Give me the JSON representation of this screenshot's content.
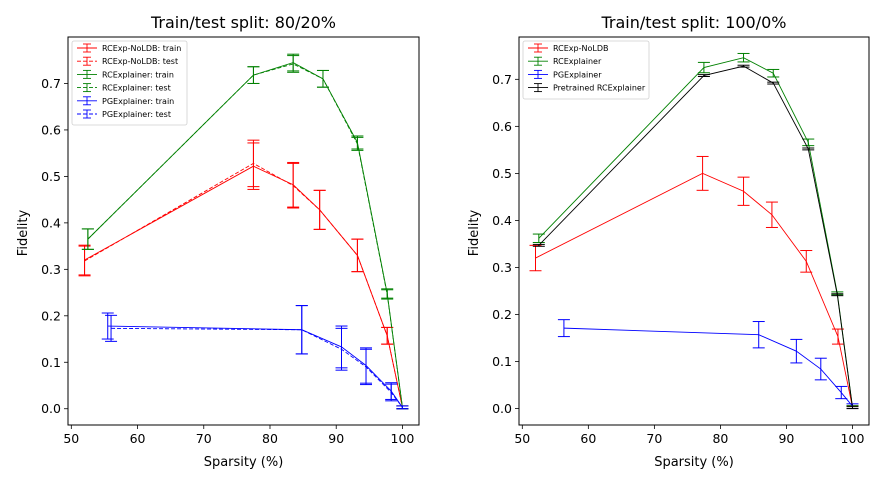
{
  "chart_data": [
    {
      "type": "line",
      "title": "Train/test split: 80/20%",
      "xlabel": "Sparsity (%)",
      "ylabel": "Fidelity",
      "xlim": [
        49.5,
        102.5
      ],
      "ylim": [
        -0.035,
        0.8
      ],
      "xticks": [
        50,
        60,
        70,
        80,
        90,
        100
      ],
      "yticks": [
        0.0,
        0.1,
        0.2,
        0.3,
        0.4,
        0.5,
        0.6,
        0.7
      ],
      "legend_position": "top-left",
      "series": [
        {
          "name": "RCExp-NoLDB: train",
          "color": "#ff0000",
          "dash": "solid",
          "x": [
            52,
            77.5,
            83.5,
            87.5,
            93.2,
            97.7,
            100
          ],
          "y": [
            0.32,
            0.522,
            0.482,
            0.428,
            0.33,
            0.157,
            0.003
          ],
          "err": [
            0.032,
            0.05,
            0.048,
            0.042,
            0.035,
            0.018,
            0.003
          ]
        },
        {
          "name": "RCExp-NoLDB: test",
          "color": "#ff0000",
          "dash": "dashed",
          "x": [
            52,
            77.5,
            83.5,
            87.5,
            93.2,
            97.7,
            100
          ],
          "y": [
            0.318,
            0.528,
            0.48,
            0.428,
            0.33,
            0.157,
            0.003
          ],
          "err": [
            0.032,
            0.05,
            0.048,
            0.042,
            0.035,
            0.018,
            0.003
          ]
        },
        {
          "name": "RCExplainer: train",
          "color": "#008000",
          "dash": "solid",
          "x": [
            52.5,
            77.5,
            83.5,
            88,
            93.2,
            97.7,
            100
          ],
          "y": [
            0.365,
            0.718,
            0.745,
            0.71,
            0.573,
            0.248,
            0.003
          ],
          "err": [
            0.022,
            0.018,
            0.018,
            0.018,
            0.014,
            0.01,
            0.003
          ]
        },
        {
          "name": "RCExplainer: test",
          "color": "#008000",
          "dash": "dashed",
          "x": [
            52.5,
            77.5,
            83.5,
            88,
            93.2,
            97.7,
            100
          ],
          "y": [
            0.365,
            0.718,
            0.742,
            0.71,
            0.57,
            0.246,
            0.003
          ],
          "err": [
            0.022,
            0.018,
            0.018,
            0.018,
            0.014,
            0.01,
            0.003
          ]
        },
        {
          "name": "PGExplainer: train",
          "color": "#0000ff",
          "dash": "solid",
          "x": [
            55.5,
            84.8,
            90.8,
            94.5,
            98.3,
            100
          ],
          "y": [
            0.178,
            0.17,
            0.133,
            0.093,
            0.038,
            0.003
          ],
          "err": [
            0.028,
            0.052,
            0.045,
            0.038,
            0.018,
            0.003
          ]
        },
        {
          "name": "PGExplainer: test",
          "color": "#0000ff",
          "dash": "dashed",
          "x": [
            56,
            84.8,
            90.8,
            94.5,
            98.3,
            100
          ],
          "y": [
            0.173,
            0.17,
            0.128,
            0.09,
            0.035,
            0.003
          ],
          "err": [
            0.028,
            0.052,
            0.045,
            0.038,
            0.018,
            0.003
          ]
        }
      ]
    },
    {
      "type": "line",
      "title": "Train/test split: 100/0%",
      "xlabel": "Sparsity (%)",
      "ylabel": "Fidelity",
      "xlim": [
        49.5,
        102.5
      ],
      "ylim": [
        -0.035,
        0.79
      ],
      "xticks": [
        50,
        60,
        70,
        80,
        90,
        100
      ],
      "yticks": [
        0.0,
        0.1,
        0.2,
        0.3,
        0.4,
        0.5,
        0.6,
        0.7
      ],
      "legend_position": "top-left",
      "series": [
        {
          "name": "RCExp-NoLDB",
          "color": "#ff0000",
          "dash": "solid",
          "x": [
            52,
            77.3,
            83.5,
            87.8,
            93,
            97.8,
            100
          ],
          "y": [
            0.32,
            0.5,
            0.462,
            0.412,
            0.313,
            0.153,
            0.003
          ],
          "err": [
            0.027,
            0.036,
            0.03,
            0.027,
            0.023,
            0.016,
            0.003
          ]
        },
        {
          "name": "RCExplainer",
          "color": "#008000",
          "dash": "solid",
          "x": [
            52.5,
            77.5,
            83.5,
            88,
            93.3,
            97.7,
            100
          ],
          "y": [
            0.362,
            0.725,
            0.746,
            0.713,
            0.566,
            0.245,
            0.003
          ],
          "err": [
            0.009,
            0.011,
            0.009,
            0.008,
            0.007,
            0.003,
            0.003
          ]
        },
        {
          "name": "PGExplainer",
          "color": "#0000ff",
          "dash": "solid",
          "x": [
            56.3,
            85.8,
            91.5,
            95.2,
            98.3,
            100
          ],
          "y": [
            0.171,
            0.157,
            0.122,
            0.084,
            0.034,
            0.005
          ],
          "err": [
            0.018,
            0.028,
            0.025,
            0.023,
            0.013,
            0.005
          ]
        },
        {
          "name": "Pretrained RCExplainer",
          "color": "#000000",
          "dash": "solid",
          "x": [
            52.5,
            77.5,
            83.5,
            88,
            93.3,
            97.7,
            100
          ],
          "y": [
            0.347,
            0.708,
            0.728,
            0.692,
            0.552,
            0.242,
            0.002
          ],
          "err": [
            0.002,
            0.002,
            0.002,
            0.002,
            0.002,
            0.002,
            0.002
          ]
        }
      ]
    }
  ]
}
